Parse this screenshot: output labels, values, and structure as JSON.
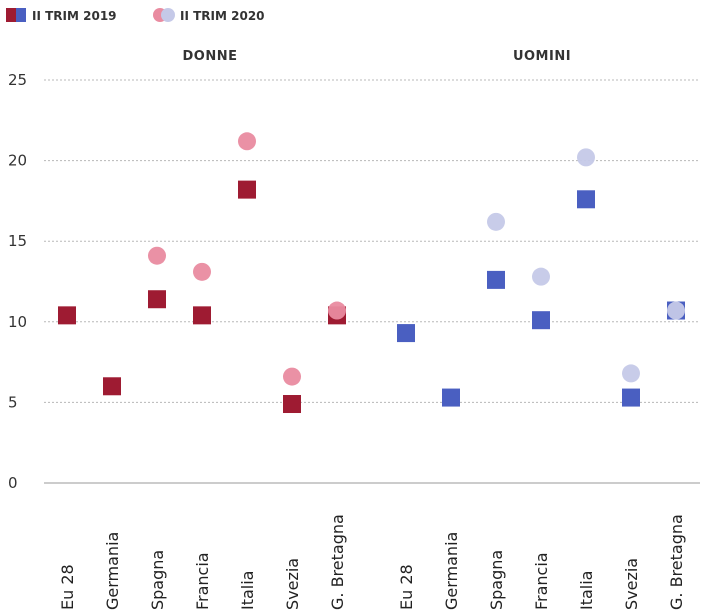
{
  "chart_data": {
    "type": "scatter",
    "legend": {
      "placement": "top-left",
      "entries": [
        {
          "label": "II TRIM 2019",
          "marker": "square",
          "colors": [
            "#9e1b32",
            "#4a5fc1"
          ]
        },
        {
          "label": "II TRIM 2020",
          "marker": "circle",
          "colors": [
            "#e98ba0",
            "#c5c9e8"
          ]
        }
      ]
    },
    "ylim": [
      0,
      25
    ],
    "yticks": [
      "0",
      "5",
      "10",
      "15",
      "20",
      "25"
    ],
    "ytick_values": [
      0,
      5,
      10,
      15,
      20,
      25
    ],
    "grid": true,
    "categories": [
      "Eu 28",
      "Germania",
      "Spagna",
      "Francia",
      "Italia",
      "Svezia",
      "G. Bretagna"
    ],
    "panels": [
      {
        "title": "DONNE",
        "series": [
          {
            "name": "II TRIM 2019",
            "marker": "square",
            "color": "#9e1b32",
            "values": [
              10.4,
              6.0,
              11.4,
              10.4,
              18.2,
              4.9,
              10.4
            ]
          },
          {
            "name": "II TRIM 2020",
            "marker": "circle",
            "color": "#e98ba0",
            "values": [
              null,
              null,
              14.1,
              13.1,
              21.2,
              6.6,
              10.7
            ]
          }
        ]
      },
      {
        "title": "UOMINI",
        "series": [
          {
            "name": "II TRIM 2019",
            "marker": "square",
            "color": "#4a5fc1",
            "values": [
              9.3,
              5.3,
              12.6,
              10.1,
              17.6,
              5.3,
              10.7
            ]
          },
          {
            "name": "II TRIM 2020",
            "marker": "circle",
            "color": "#c5c9e8",
            "values": [
              null,
              null,
              16.2,
              12.8,
              20.2,
              6.8,
              10.7
            ]
          }
        ]
      }
    ]
  }
}
